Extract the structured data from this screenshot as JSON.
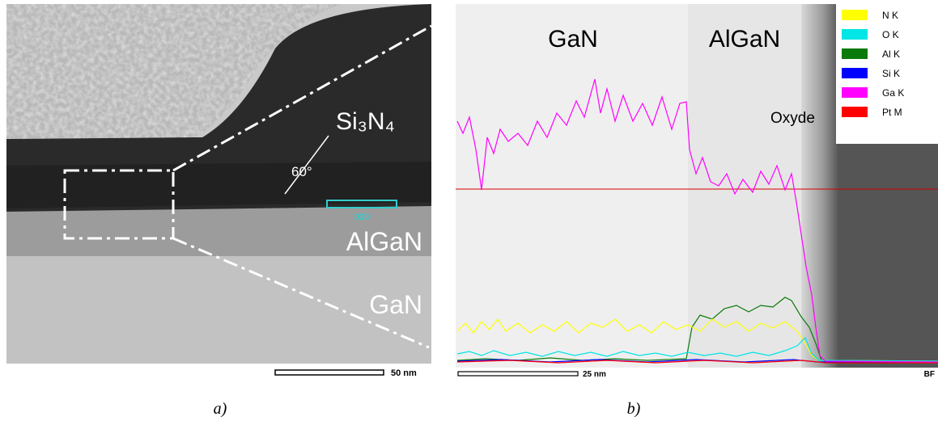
{
  "panel_a": {
    "labels": {
      "si3n4": "Si₃N₄",
      "angle": "60°",
      "region_tag": "030",
      "algan": "AlGaN",
      "gan": "GaN"
    },
    "scale_bar": "50 nm",
    "caption": "a)"
  },
  "panel_b": {
    "labels": {
      "gan": "GaN",
      "algan": "AlGaN",
      "oxyde": "Oxyde"
    },
    "legend": [
      {
        "name": "N K",
        "color": "#ffff00"
      },
      {
        "name": "O K",
        "color": "#00e5e5"
      },
      {
        "name": "Al K",
        "color": "#0a7a0a"
      },
      {
        "name": "Si K",
        "color": "#0000ff"
      },
      {
        "name": "Ga K",
        "color": "#ff00ff"
      },
      {
        "name": "Pt M",
        "color": "#ff0000"
      }
    ],
    "scale_bar": "25 nm",
    "mode": "BF",
    "caption": "b)"
  }
}
